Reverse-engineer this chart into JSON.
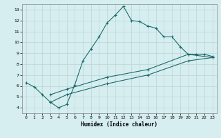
{
  "xlabel": "Humidex (Indice chaleur)",
  "bg_color": "#d6eef0",
  "grid_color": "#c0d8da",
  "line_color": "#1a6b6b",
  "xlim": [
    -0.5,
    23.5
  ],
  "ylim": [
    3.5,
    13.5
  ],
  "xticks": [
    0,
    1,
    2,
    3,
    4,
    5,
    6,
    7,
    8,
    9,
    10,
    11,
    12,
    13,
    14,
    15,
    16,
    17,
    18,
    19,
    20,
    21,
    22,
    23
  ],
  "yticks": [
    4,
    5,
    6,
    7,
    8,
    9,
    10,
    11,
    12,
    13
  ],
  "line1_x": [
    0,
    1,
    2,
    3,
    4,
    5,
    6,
    7,
    8,
    9,
    10,
    11,
    12,
    13,
    14,
    15,
    16,
    17,
    18,
    19,
    20,
    21,
    22,
    23
  ],
  "line1_y": [
    6.3,
    5.9,
    5.2,
    4.5,
    4.0,
    4.3,
    6.1,
    8.3,
    9.4,
    10.5,
    11.8,
    12.5,
    13.3,
    12.0,
    11.9,
    11.5,
    11.3,
    10.5,
    10.5,
    9.6,
    8.9,
    8.9,
    8.9,
    8.7
  ],
  "line2_x": [
    3,
    5,
    10,
    15,
    20,
    23
  ],
  "line2_y": [
    5.2,
    5.7,
    6.8,
    7.5,
    8.9,
    8.6
  ],
  "line3_x": [
    3,
    5,
    10,
    15,
    20,
    23
  ],
  "line3_y": [
    4.5,
    5.2,
    6.2,
    7.0,
    8.3,
    8.6
  ]
}
